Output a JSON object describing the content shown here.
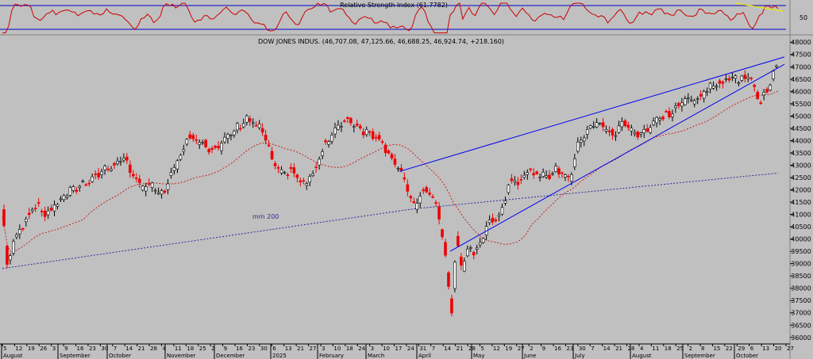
{
  "chart_data": {
    "type": "candlestick",
    "rsi_panel": {
      "title": "Relative Strength Index (61.7782)",
      "y_tick": "50",
      "levels": [
        70,
        30
      ]
    },
    "price_panel": {
      "title": "DOW JONES INDUS. (46,707.08, 47,125.66, 46,688.25, 46,924.74, +218.160)",
      "ma_label": "mm 200",
      "ylim": [
        35800,
        48200
      ],
      "y_ticks": [
        36000,
        36500,
        37000,
        37500,
        38000,
        38500,
        39000,
        39500,
        40000,
        40500,
        41000,
        41500,
        42000,
        42500,
        43000,
        43500,
        44000,
        44500,
        45000,
        45500,
        46000,
        46500,
        47000,
        47500,
        48000
      ]
    },
    "x_axis": {
      "day_ticks": [
        "5",
        "12",
        "19",
        "26",
        "3",
        "9",
        "16",
        "23",
        "30",
        "7",
        "14",
        "21",
        "28",
        "4",
        "11",
        "18",
        "25",
        "2",
        "9",
        "16",
        "23",
        "30",
        "6",
        "13",
        "21",
        "27",
        "3",
        "10",
        "18",
        "24",
        "3",
        "10",
        "17",
        "24",
        "31",
        "7",
        "14",
        "21",
        "28",
        "5",
        "12",
        "19",
        "27",
        "2",
        "9",
        "16",
        "23",
        "30",
        "7",
        "14",
        "21",
        "28",
        "4",
        "11",
        "18",
        "25",
        "2",
        "8",
        "15",
        "22",
        "29",
        "6",
        "13",
        "20",
        "27"
      ],
      "months": [
        "August",
        "September",
        "October",
        "November",
        "December",
        "2025",
        "February",
        "March",
        "April",
        "May",
        "June",
        "July",
        "August",
        "September",
        "October"
      ]
    },
    "close_anchors": [
      [
        0,
        41200
      ],
      [
        3,
        39000
      ],
      [
        8,
        40000
      ],
      [
        14,
        40700
      ],
      [
        20,
        41400
      ],
      [
        28,
        41000
      ],
      [
        40,
        41800
      ],
      [
        50,
        42200
      ],
      [
        60,
        42600
      ],
      [
        70,
        43000
      ],
      [
        78,
        43200
      ],
      [
        88,
        42100
      ],
      [
        95,
        42200
      ],
      [
        98,
        41800
      ],
      [
        102,
        41900
      ],
      [
        110,
        43000
      ],
      [
        118,
        44200
      ],
      [
        125,
        44000
      ],
      [
        132,
        43700
      ],
      [
        138,
        43800
      ],
      [
        150,
        44600
      ],
      [
        155,
        44900
      ],
      [
        165,
        44400
      ],
      [
        170,
        43400
      ],
      [
        176,
        42600
      ],
      [
        184,
        42800
      ],
      [
        190,
        42200
      ],
      [
        196,
        42500
      ],
      [
        204,
        43800
      ],
      [
        210,
        44300
      ],
      [
        218,
        44900
      ],
      [
        225,
        44600
      ],
      [
        232,
        44300
      ],
      [
        238,
        44200
      ],
      [
        244,
        43600
      ],
      [
        250,
        43000
      ],
      [
        256,
        42200
      ],
      [
        262,
        41200
      ],
      [
        266,
        42000
      ],
      [
        272,
        41800
      ],
      [
        276,
        41200
      ],
      [
        280,
        39800
      ],
      [
        285,
        37000
      ],
      [
        288,
        40000
      ],
      [
        292,
        38800
      ],
      [
        296,
        39600
      ],
      [
        300,
        39500
      ],
      [
        304,
        40000
      ],
      [
        310,
        40800
      ],
      [
        316,
        41000
      ],
      [
        322,
        42400
      ],
      [
        328,
        42400
      ],
      [
        334,
        42800
      ],
      [
        340,
        42500
      ],
      [
        346,
        42600
      ],
      [
        352,
        42800
      ],
      [
        360,
        42500
      ],
      [
        366,
        44000
      ],
      [
        374,
        44700
      ],
      [
        380,
        44600
      ],
      [
        388,
        44200
      ],
      [
        394,
        44800
      ],
      [
        400,
        44300
      ],
      [
        408,
        44400
      ],
      [
        416,
        44900
      ],
      [
        424,
        45100
      ],
      [
        432,
        45600
      ],
      [
        440,
        45700
      ],
      [
        448,
        46100
      ],
      [
        456,
        46400
      ],
      [
        462,
        46600
      ],
      [
        468,
        46500
      ],
      [
        474,
        46700
      ],
      [
        480,
        45500
      ],
      [
        486,
        46200
      ],
      [
        490,
        46900
      ]
    ],
    "wedge": {
      "upper": [
        [
          252,
          42750
        ],
        [
          496,
          47400
        ]
      ],
      "lower": [
        [
          284,
          39500
        ],
        [
          496,
          47100
        ]
      ]
    },
    "resistance_tick": [
      [
        465,
        48100
      ],
      [
        495,
        47700
      ]
    ]
  }
}
